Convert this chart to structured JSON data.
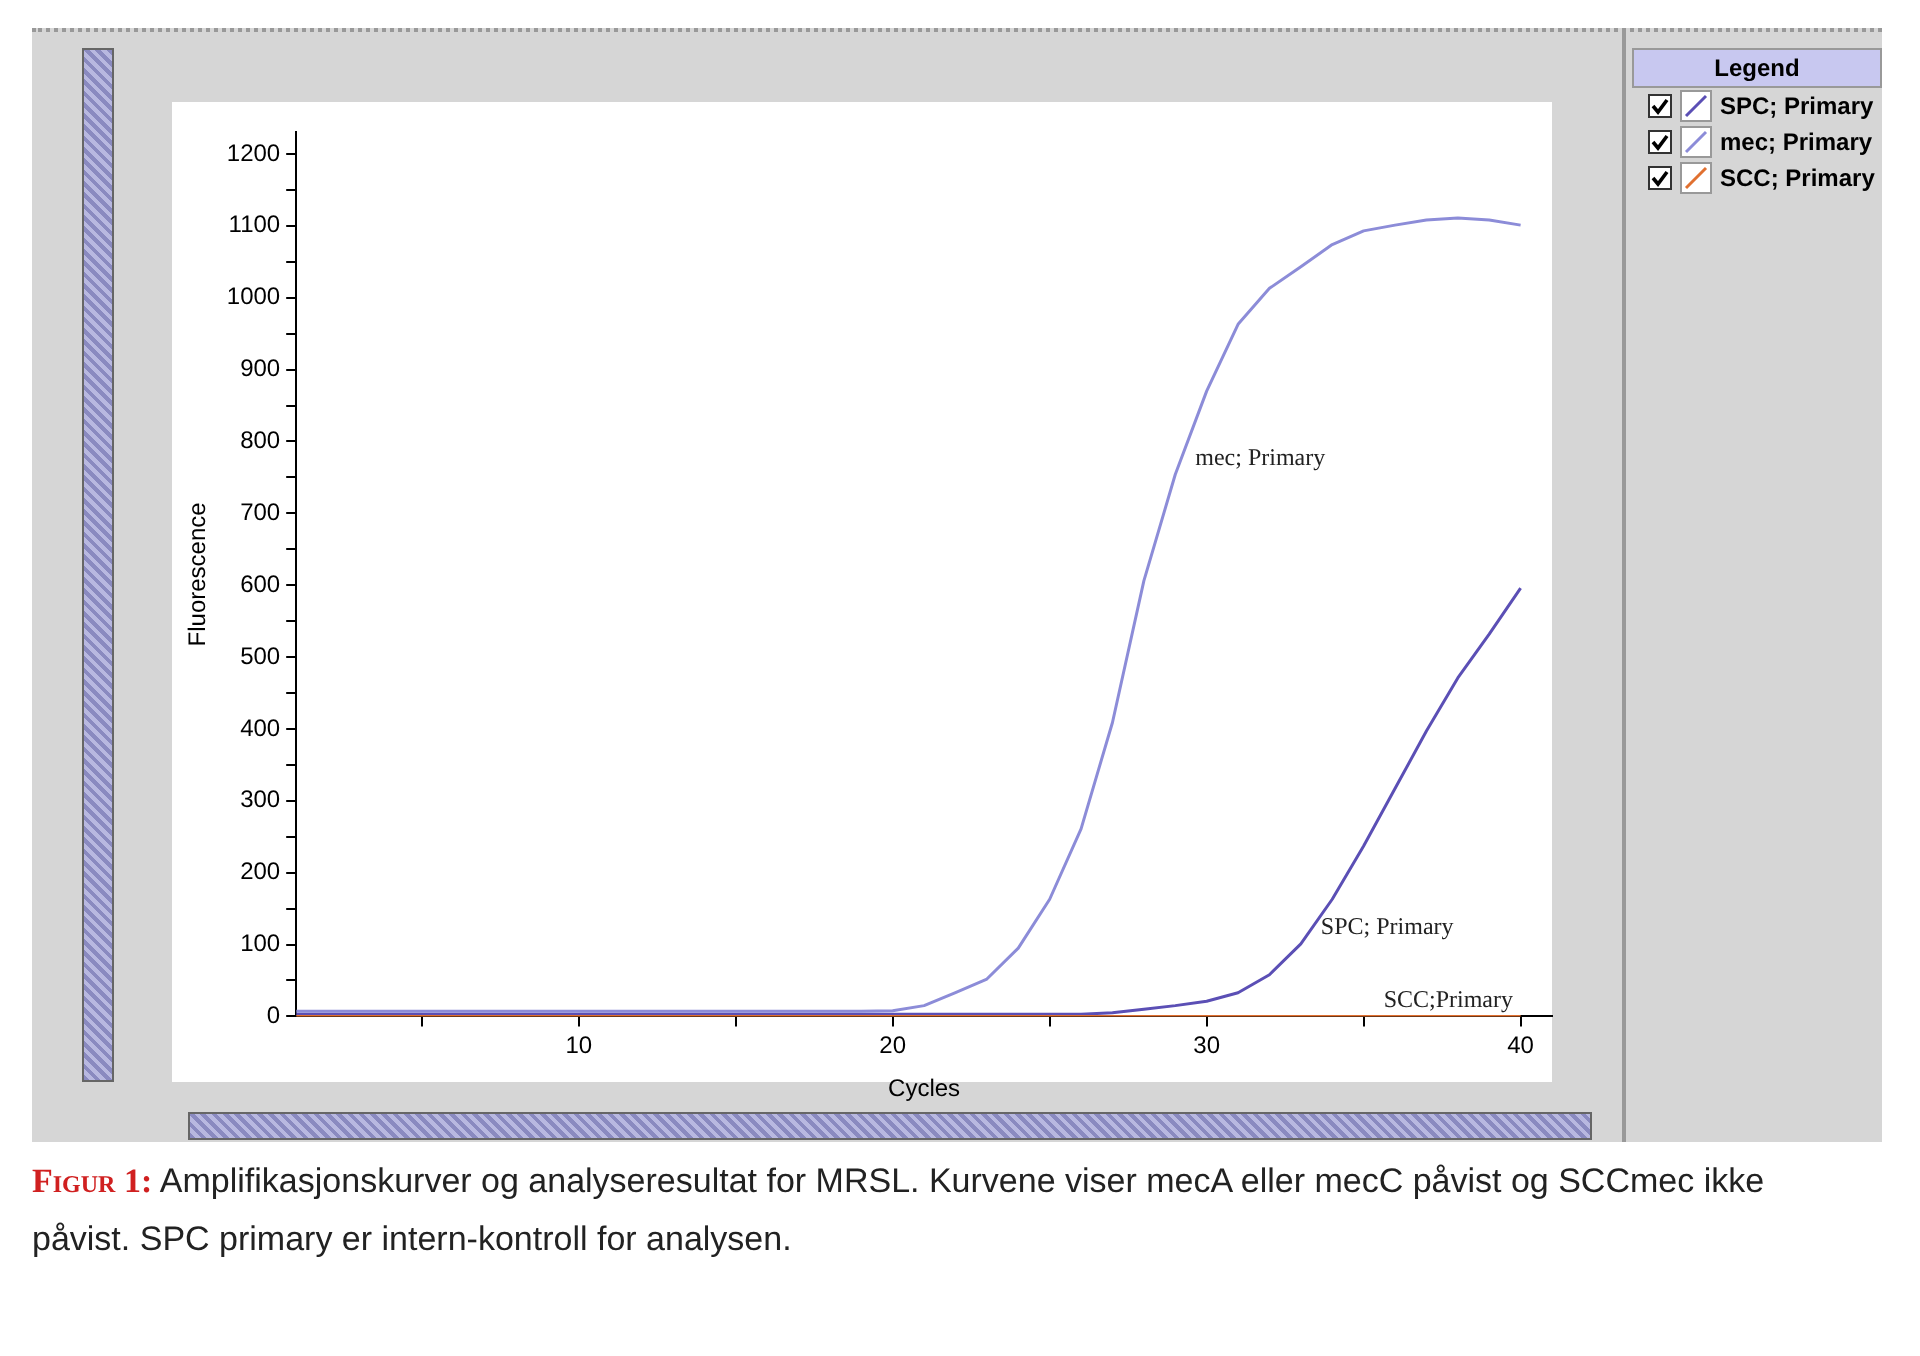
{
  "chart_data": {
    "type": "line",
    "xlabel": "Cycles",
    "ylabel": "Fluorescence",
    "legend_title": "Legend",
    "legend": "top right",
    "grid": false,
    "marker": "none",
    "line_style": "solid",
    "x": [
      1,
      2,
      3,
      4,
      5,
      6,
      7,
      8,
      9,
      10,
      11,
      12,
      13,
      14,
      15,
      16,
      17,
      18,
      19,
      20,
      21,
      22,
      23,
      24,
      25,
      26,
      27,
      28,
      29,
      30,
      31,
      32,
      33,
      34,
      35,
      36,
      37,
      38,
      39,
      40
    ],
    "xlim": [
      1,
      41
    ],
    "xticks": [
      {
        "value": 5,
        "label": null
      },
      10,
      {
        "value": 15,
        "label": null
      },
      20,
      {
        "value": 25,
        "label": null
      },
      30,
      {
        "value": 35,
        "label": null
      },
      40
    ],
    "ylim": [
      0,
      1230
    ],
    "yticks": [
      0,
      {
        "value": 50,
        "label": null
      },
      100,
      {
        "value": 150,
        "label": null
      },
      200,
      {
        "value": 250,
        "label": null
      },
      300,
      {
        "value": 350,
        "label": null
      },
      400,
      {
        "value": 450,
        "label": null
      },
      500,
      {
        "value": 550,
        "label": null
      },
      600,
      {
        "value": 650,
        "label": null
      },
      700,
      {
        "value": 750,
        "label": null
      },
      800,
      {
        "value": 850,
        "label": null
      },
      900,
      {
        "value": 950,
        "label": null
      },
      1000,
      {
        "value": 1050,
        "label": null
      },
      1100,
      {
        "value": 1150,
        "label": null
      },
      1200
    ],
    "series": [
      {
        "name": "SPC; Primary",
        "color": "#5b4fb5",
        "values": [
          3,
          3,
          3,
          3,
          3,
          3,
          3,
          3,
          3,
          3,
          3,
          3,
          3,
          3,
          3,
          3,
          3,
          3,
          3,
          3,
          3,
          3,
          3,
          3,
          3,
          3,
          5,
          10,
          15,
          21,
          33,
          58,
          101,
          163,
          237,
          317,
          397,
          471,
          532,
          596
        ]
      },
      {
        "name": "mec; Primary",
        "color": "#8c8cd8",
        "values": [
          7,
          7,
          7,
          7,
          7,
          7,
          7,
          7,
          7,
          7,
          7,
          7,
          7,
          7,
          7,
          7,
          7,
          7,
          7,
          8,
          15,
          33,
          52,
          95,
          163,
          261,
          409,
          606,
          754,
          870,
          963,
          1013,
          1043,
          1074,
          1093,
          1101,
          1108,
          1111,
          1108,
          1101
        ]
      },
      {
        "name": "SCC; Primary",
        "color": "#e07030",
        "values": [
          0,
          0,
          0,
          0,
          0,
          0,
          0,
          0,
          0,
          0,
          0,
          0,
          0,
          0,
          0,
          0,
          0,
          0,
          0,
          0,
          0,
          0,
          0,
          0,
          0,
          0,
          0,
          0,
          0,
          0,
          0,
          0,
          0,
          0,
          0,
          0,
          0,
          0,
          0,
          0
        ]
      }
    ],
    "annotations": [
      {
        "text": "mec; Primary",
        "x": 29,
        "y": 754
      },
      {
        "text": "SPC; Primary",
        "x": 33,
        "y": 101
      },
      {
        "text": "SCC;Primary",
        "x": 35,
        "y": 0
      },
      "Figur 1: Amplifikasjonskurver og analyseresultat for MRSL. Kurvene viser mecA eller mecC påvist og SCCmec ikke påvist. SPC primary er intern-kontroll for analysen."
    ]
  }
}
